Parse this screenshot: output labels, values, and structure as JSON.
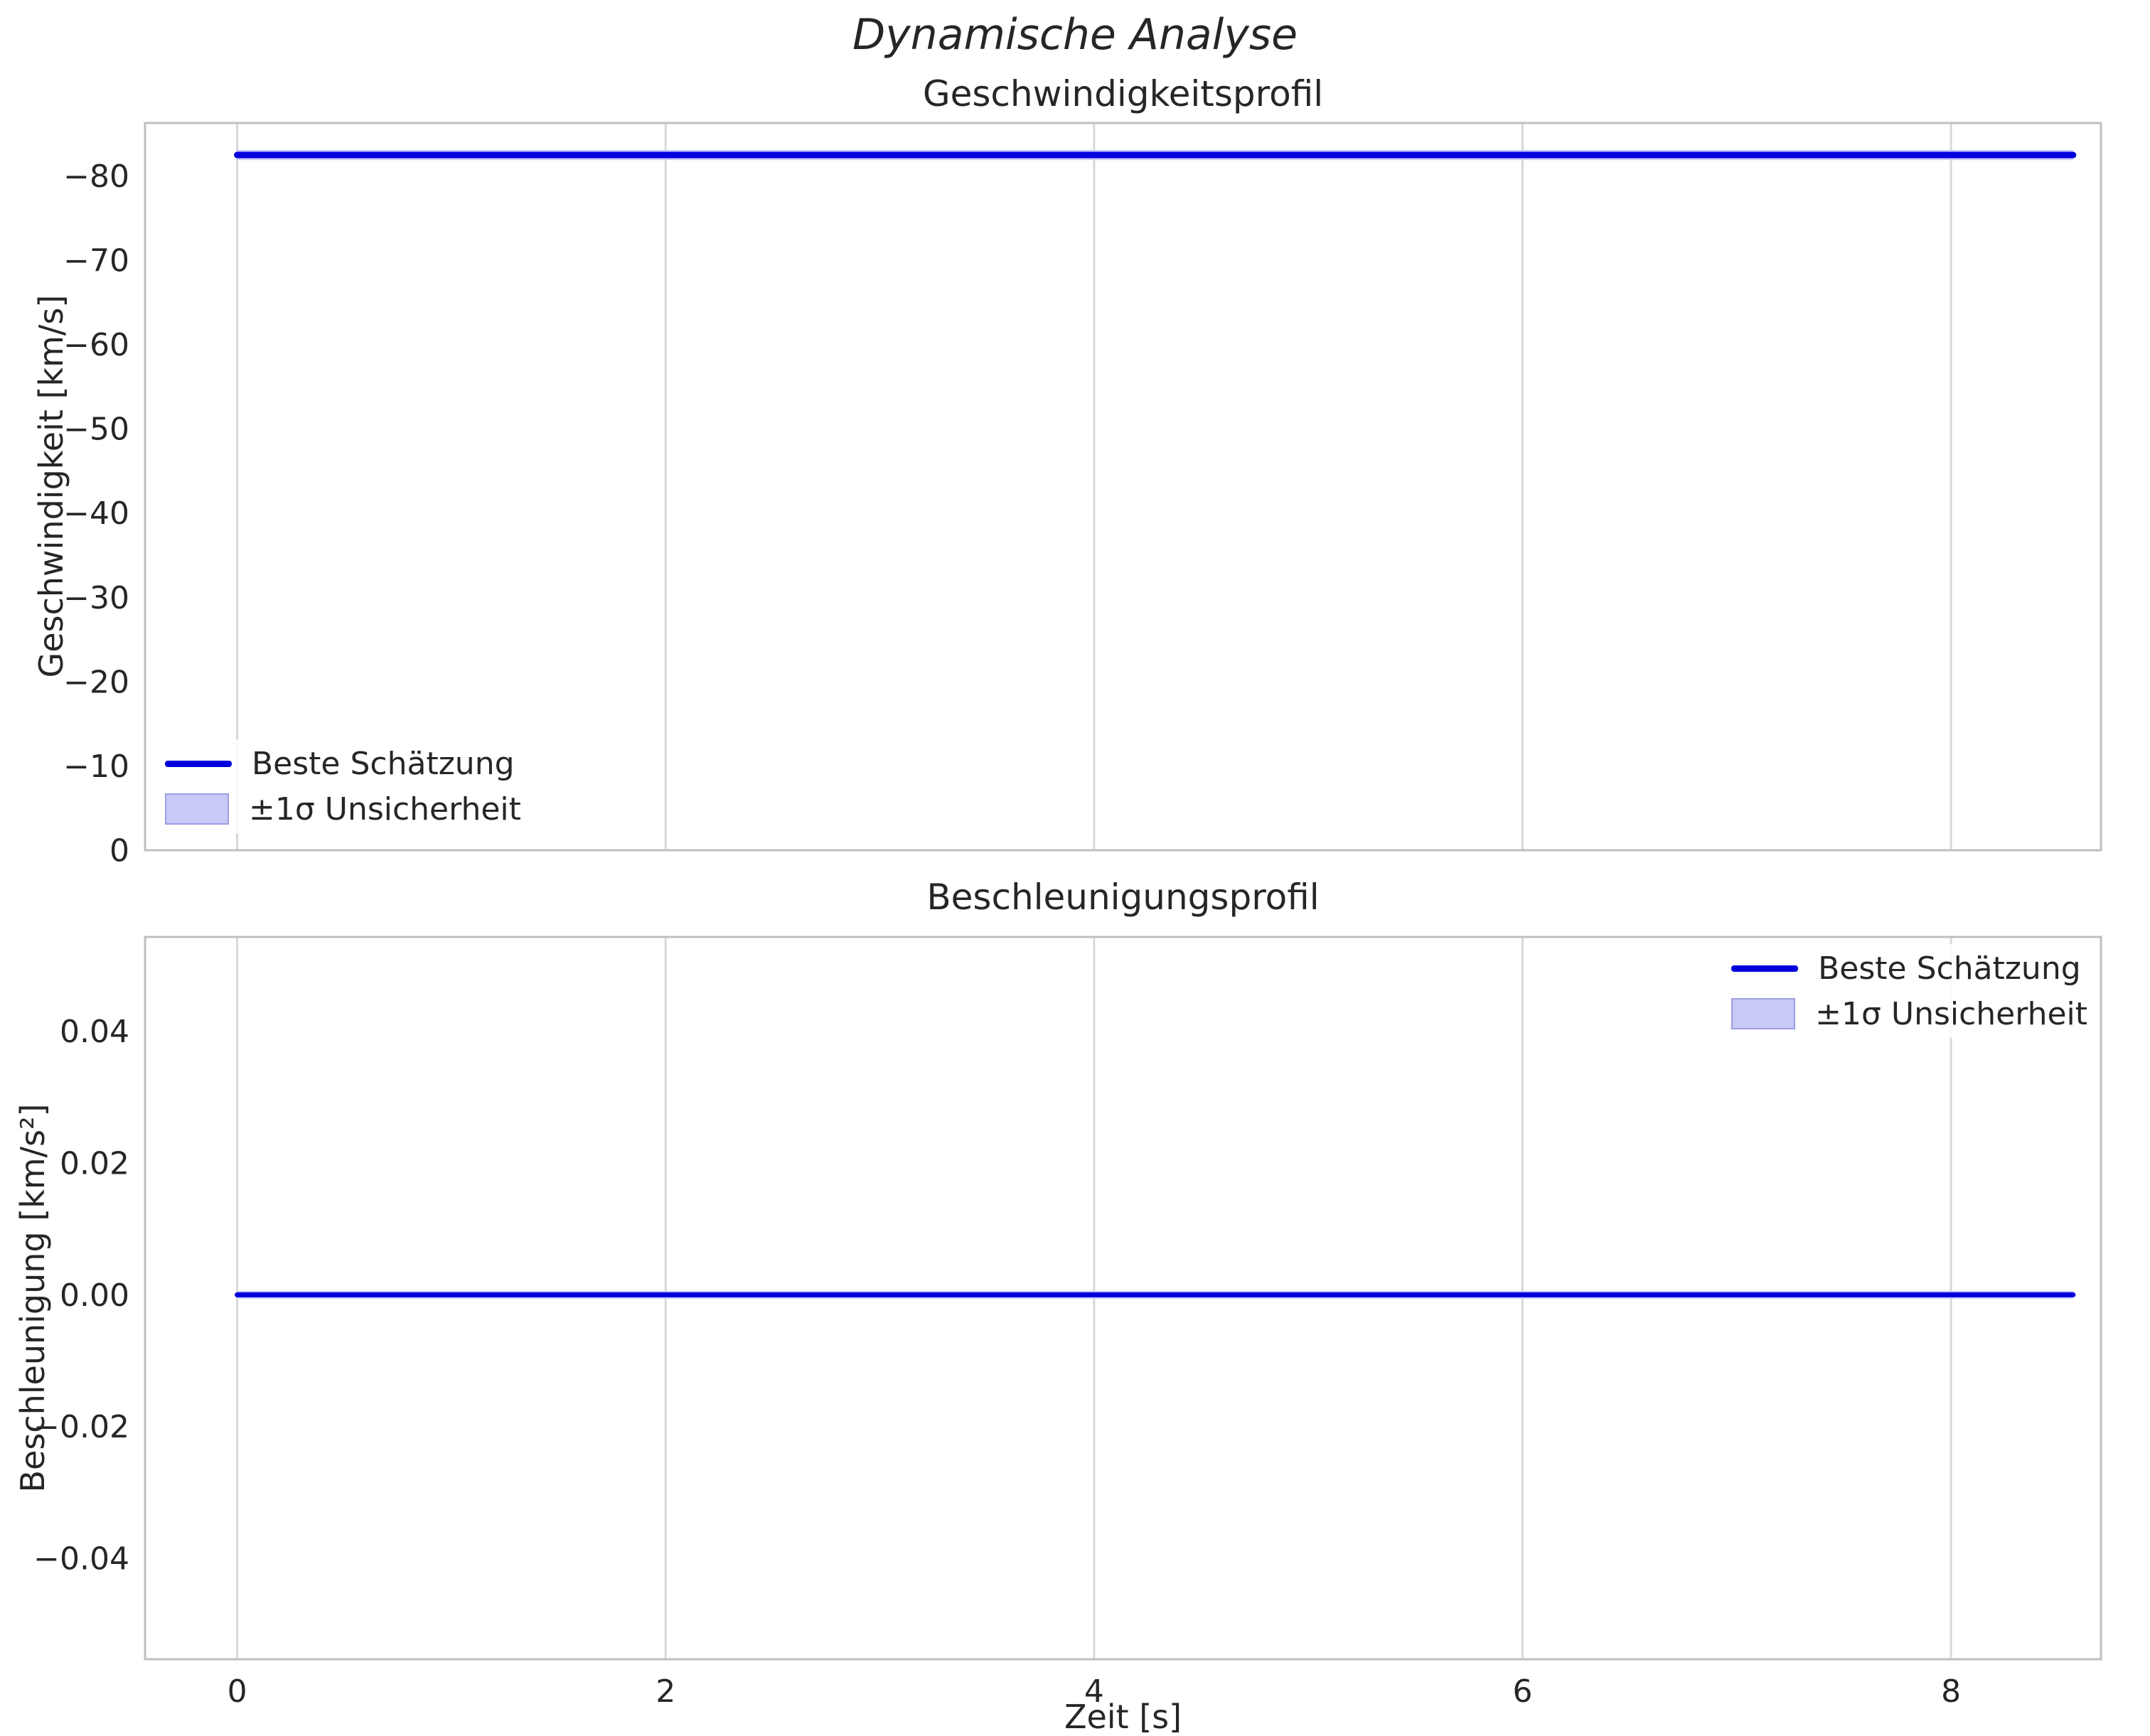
{
  "figure": {
    "suptitle": "Dynamische Analyse",
    "xlabel": "Zeit [s]"
  },
  "legend": {
    "line_label": "Beste Schätzung",
    "band_label": "±1σ Unsicherheit"
  },
  "colors": {
    "line": "#0000dd",
    "band_fill": "#c9c9f8",
    "band_edge": "#9d9de2",
    "grid": "#d8d8d8",
    "spine": "#bfbfbf",
    "text": "#262626",
    "background": "#ffffff"
  },
  "chart_data": [
    {
      "type": "line",
      "title": "Geschwindigkeitsprofil",
      "xlabel": "",
      "ylabel": "Geschwindigkeit [km/s]",
      "series": [
        {
          "name": "Beste Schätzung",
          "x": [
            0,
            8.57
          ],
          "y": [
            -82.5,
            -82.5
          ],
          "band_halfwidth": 0.6
        }
      ],
      "xlim": [
        -0.43,
        8.7
      ],
      "ylim_bottom_top": [
        0,
        -86.3
      ],
      "y_axis_inverted": true,
      "xticks": [
        {
          "v": 0,
          "label": "0"
        },
        {
          "v": 2,
          "label": "2"
        },
        {
          "v": 4,
          "label": "4"
        },
        {
          "v": 6,
          "label": "6"
        },
        {
          "v": 8,
          "label": "8"
        }
      ],
      "show_xtick_labels": false,
      "yticks": [
        {
          "v": -80,
          "label": "−80"
        },
        {
          "v": -70,
          "label": "−70"
        },
        {
          "v": -60,
          "label": "−60"
        },
        {
          "v": -50,
          "label": "−50"
        },
        {
          "v": -40,
          "label": "−40"
        },
        {
          "v": -30,
          "label": "−30"
        },
        {
          "v": -20,
          "label": "−20"
        },
        {
          "v": -10,
          "label": "−10"
        },
        {
          "v": 0,
          "label": "0"
        }
      ],
      "grid": "x",
      "legend_position": "lower left"
    },
    {
      "type": "line",
      "title": "Beschleunigungsprofil",
      "xlabel": "Zeit [s]",
      "ylabel": "Beschleunigung [km/s²]",
      "series": [
        {
          "name": "Beste Schätzung",
          "x": [
            0,
            8.57
          ],
          "y": [
            0.0,
            0.0
          ],
          "band_halfwidth": 0.0006
        }
      ],
      "xlim": [
        -0.43,
        8.7
      ],
      "ylim_bottom_top": [
        -0.0553,
        0.0543
      ],
      "y_axis_inverted": false,
      "xticks": [
        {
          "v": 0,
          "label": "0"
        },
        {
          "v": 2,
          "label": "2"
        },
        {
          "v": 4,
          "label": "4"
        },
        {
          "v": 6,
          "label": "6"
        },
        {
          "v": 8,
          "label": "8"
        }
      ],
      "show_xtick_labels": true,
      "yticks": [
        {
          "v": 0.04,
          "label": "0.04"
        },
        {
          "v": 0.02,
          "label": "0.02"
        },
        {
          "v": 0,
          "label": "0.00"
        },
        {
          "v": -0.02,
          "label": "−0.02"
        },
        {
          "v": -0.04,
          "label": "−0.04"
        }
      ],
      "grid": "x",
      "legend_position": "upper right"
    }
  ]
}
